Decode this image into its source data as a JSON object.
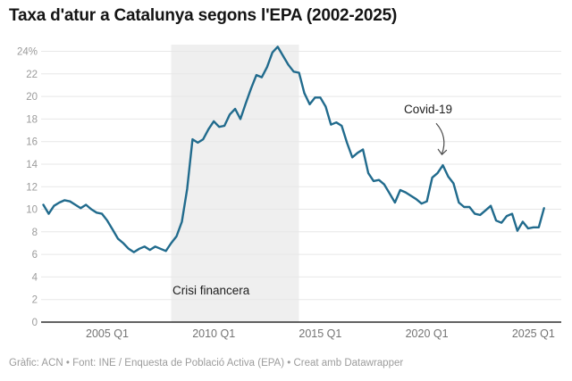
{
  "title": "Taxa d'atur a Catalunya segons l'EPA (2002-2025)",
  "footer": "Gràfic: ACN • Font: INE / Enquesta de Població Activa (EPA) • Creat amb Datawrapper",
  "annotations": {
    "band_label": "Crisi financera",
    "arrow_label": "Covid-19"
  },
  "chart_data": {
    "type": "line",
    "title": "Taxa d'atur a Catalunya segons l'EPA (2002-2025)",
    "unit": "%",
    "x_start": "2002 Q1",
    "x_end": "2025 Q3",
    "x_frequency": "quarterly",
    "ylim": [
      0,
      24
    ],
    "grid": true,
    "line_color": "#216b8d",
    "series": [
      {
        "name": "Taxa d'atur (%)",
        "values": [
          10.4,
          9.6,
          10.3,
          10.6,
          10.8,
          10.7,
          10.4,
          10.1,
          10.4,
          10.0,
          9.7,
          9.6,
          9.0,
          8.2,
          7.4,
          7.0,
          6.5,
          6.2,
          6.5,
          6.7,
          6.4,
          6.7,
          6.5,
          6.3,
          7.0,
          7.6,
          8.9,
          11.8,
          16.2,
          15.9,
          16.2,
          17.1,
          17.8,
          17.3,
          17.4,
          18.4,
          18.9,
          18.0,
          19.4,
          20.7,
          21.9,
          21.7,
          22.6,
          23.9,
          24.4,
          23.6,
          22.8,
          22.2,
          22.1,
          20.3,
          19.3,
          19.9,
          19.9,
          19.1,
          17.5,
          17.7,
          17.4,
          15.9,
          14.6,
          15.0,
          15.3,
          13.2,
          12.5,
          12.6,
          12.2,
          11.4,
          10.6,
          11.7,
          11.5,
          11.2,
          10.9,
          10.5,
          10.7,
          12.8,
          13.2,
          13.9,
          12.9,
          12.3,
          10.6,
          10.2,
          10.2,
          9.6,
          9.5,
          9.9,
          10.3,
          9.0,
          8.8,
          9.4,
          9.6,
          8.1,
          8.9,
          8.3,
          8.4,
          8.4,
          10.1
        ]
      }
    ],
    "x_tick_labels": [
      "2005 Q1",
      "2010 Q1",
      "2015 Q1",
      "2020 Q1",
      "2025 Q1"
    ],
    "y_ticks": [
      {
        "value": 0,
        "label": "0"
      },
      {
        "value": 2,
        "label": "2"
      },
      {
        "value": 4,
        "label": "4"
      },
      {
        "value": 6,
        "label": "6"
      },
      {
        "value": 8,
        "label": "8"
      },
      {
        "value": 10,
        "label": "10"
      },
      {
        "value": 12,
        "label": "12"
      },
      {
        "value": 14,
        "label": "14"
      },
      {
        "value": 16,
        "label": "16"
      },
      {
        "value": 18,
        "label": "18"
      },
      {
        "value": 20,
        "label": "20"
      },
      {
        "value": 22,
        "label": "22"
      },
      {
        "value": 24,
        "label": "24%"
      }
    ],
    "band": {
      "label": "Crisi financera",
      "from": "2008 Q1",
      "to": "2014 Q1",
      "color": "#efefef"
    },
    "point_annotation": {
      "label": "Covid-19",
      "at": "2020 Q4",
      "value": 13.9
    }
  }
}
